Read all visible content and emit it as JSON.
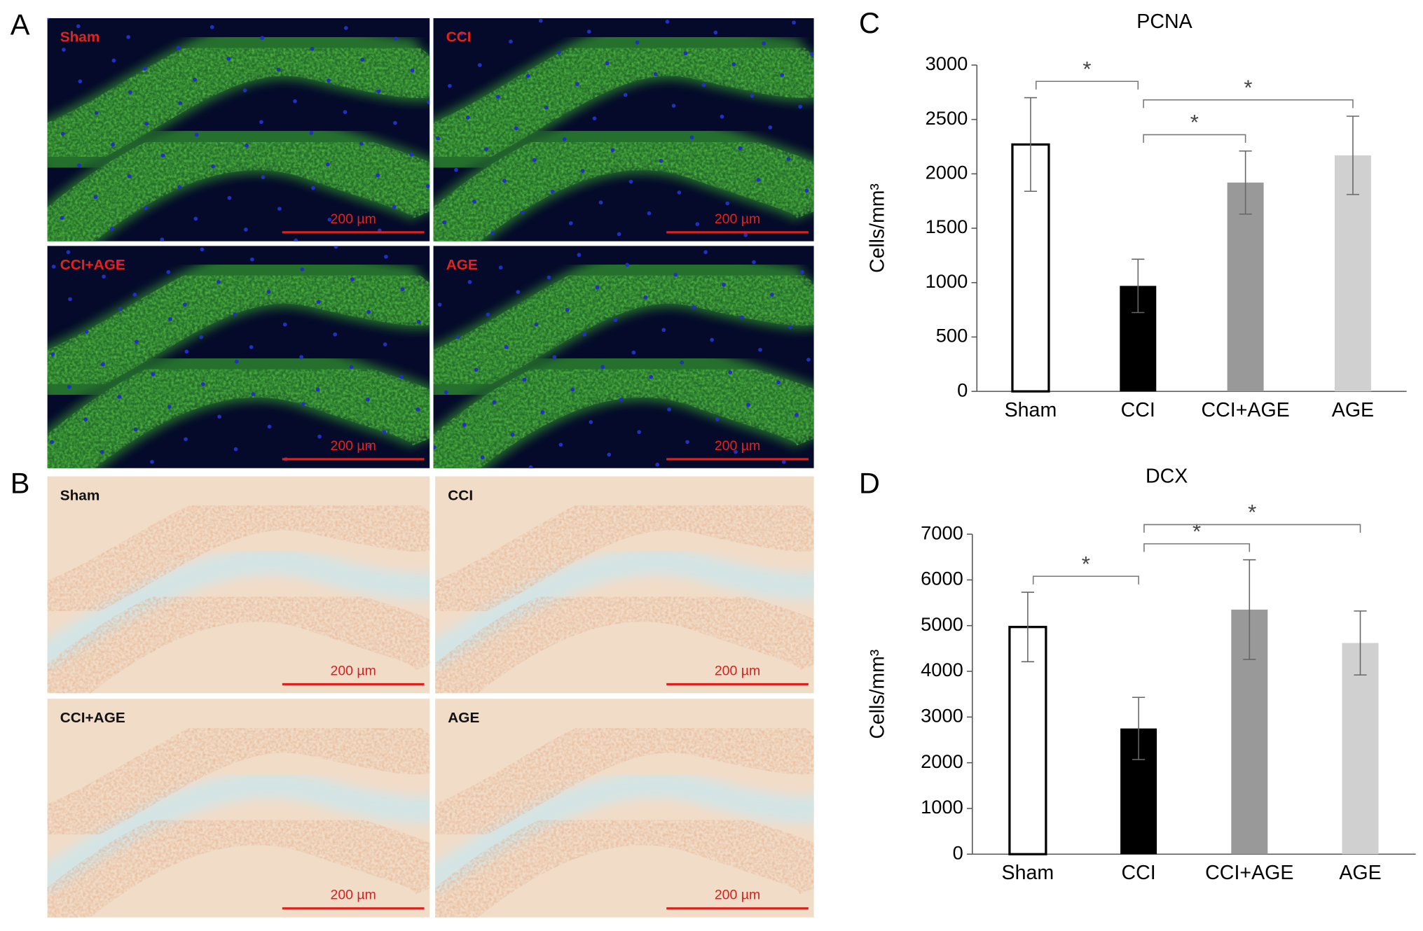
{
  "panels": [
    {
      "letter": "A",
      "images": [
        {
          "label": "Sham",
          "scale": "200 µm"
        },
        {
          "label": "CCI",
          "scale": "200 µm"
        },
        {
          "label": "CCI+AGE",
          "scale": "200 µm"
        },
        {
          "label": "AGE",
          "scale": "200 µm"
        }
      ]
    },
    {
      "letter": "B",
      "images": [
        {
          "label": "Sham",
          "scale": "200 µm"
        },
        {
          "label": "CCI",
          "scale": "200 µm"
        },
        {
          "label": "CCI+AGE",
          "scale": "200 µm"
        },
        {
          "label": "AGE",
          "scale": "200 µm"
        }
      ]
    }
  ],
  "chart_data": [
    {
      "type": "bar",
      "panel_label": "C",
      "title": "PCNA",
      "y_label": "Cells/mm³",
      "categories": [
        "Sham",
        "CCI",
        "CCI+AGE",
        "AGE"
      ],
      "values": [
        2270,
        970,
        1920,
        2170
      ],
      "errors": [
        430,
        245,
        290,
        360
      ],
      "colors": [
        "#ffffff",
        "#000000",
        "#999999",
        "#d0d0d0"
      ],
      "edgecolor": "#000000",
      "ylim": [
        0,
        3000
      ],
      "yticks": [
        0,
        500,
        1000,
        1500,
        2000,
        2500,
        3000
      ],
      "significance": [
        {
          "from": 0,
          "to": 1,
          "label": "*"
        },
        {
          "from": 1,
          "to": 2,
          "label": "*"
        },
        {
          "from": 1,
          "to": 3,
          "label": "*"
        }
      ]
    },
    {
      "type": "bar",
      "panel_label": "D",
      "title": "DCX",
      "y_label": "Cells/mm³",
      "categories": [
        "Sham",
        "CCI",
        "CCI+AGE",
        "AGE"
      ],
      "values": [
        4970,
        2750,
        5350,
        4620
      ],
      "errors": [
        760,
        680,
        1090,
        700
      ],
      "colors": [
        "#ffffff",
        "#000000",
        "#999999",
        "#d0d0d0"
      ],
      "edgecolor": "#000000",
      "ylim": [
        0,
        7000
      ],
      "yticks": [
        0,
        1000,
        2000,
        3000,
        4000,
        5000,
        6000,
        7000
      ],
      "significance": [
        {
          "from": 0,
          "to": 1,
          "label": "*"
        },
        {
          "from": 1,
          "to": 2,
          "label": "*"
        },
        {
          "from": 1,
          "to": 3,
          "label": "*"
        }
      ]
    }
  ]
}
